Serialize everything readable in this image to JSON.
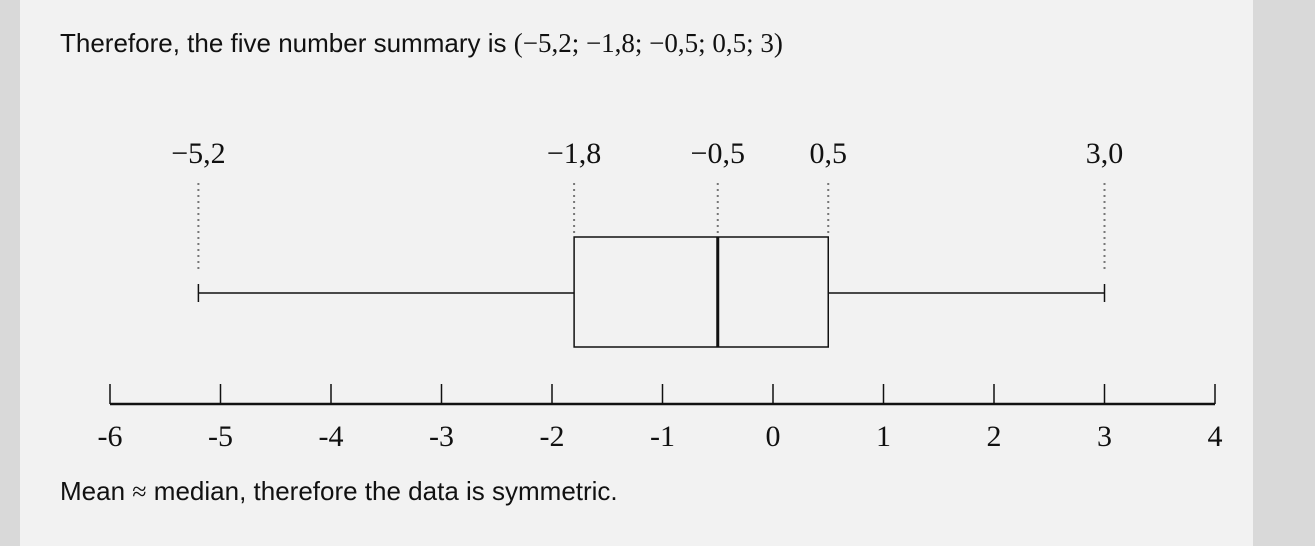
{
  "header": {
    "prefix": "Therefore, the five number summary is",
    "summary_math": "(−5,2; −1,8; −0,5; 0,5; 3)"
  },
  "footer": {
    "mean_word": "Mean",
    "approx_symbol": "≈",
    "rest": "median, therefore the data is symmetric."
  },
  "chart_data": {
    "type": "boxplot",
    "five_number_summary": {
      "minimum": -5.2,
      "q1": -1.8,
      "median": -0.5,
      "q3": 0.5,
      "maximum": 3.0
    },
    "value_labels": [
      "−5,2",
      "−1,8",
      "−0,5",
      "0,5",
      "3,0"
    ],
    "axis": {
      "min": -6,
      "max": 4,
      "ticks": [
        -6,
        -5,
        -4,
        -3,
        -2,
        -1,
        0,
        1,
        2,
        3,
        4
      ],
      "tick_labels": [
        "-6",
        "-5",
        "-4",
        "-3",
        "-2",
        "-1",
        "0",
        "1",
        "2",
        "3",
        "4"
      ]
    },
    "colors": {
      "stroke": "#111111",
      "box_fill": "#f2f2f2",
      "guide": "#777777"
    }
  }
}
